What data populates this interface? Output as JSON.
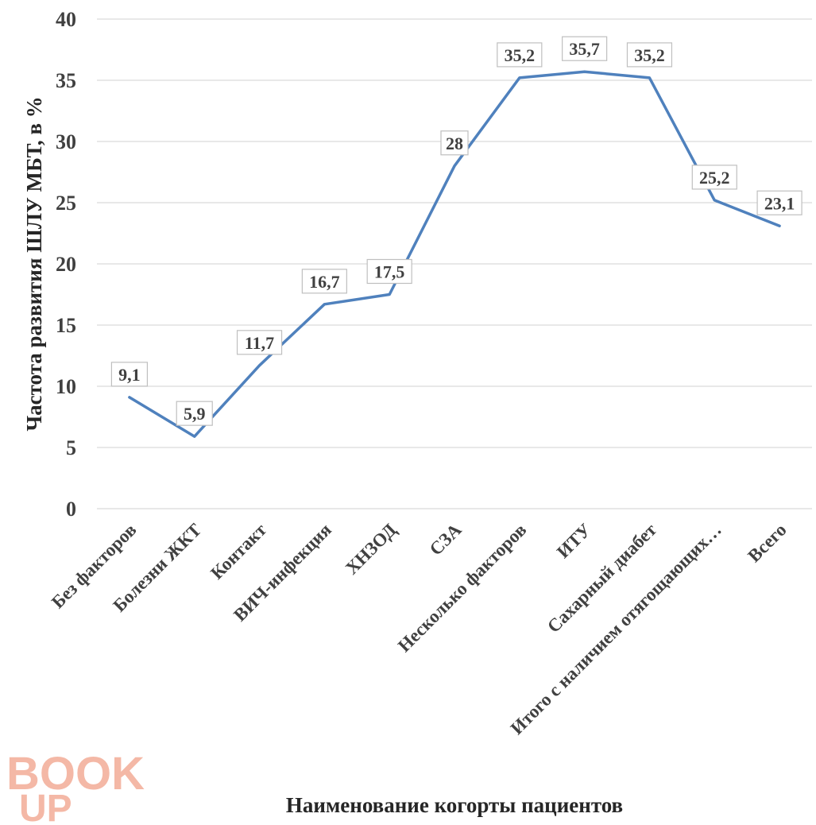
{
  "chart_data": {
    "type": "line",
    "categories": [
      "Без факторов",
      "Болезни ЖКТ",
      "Контакт",
      "ВИЧ-инфекция",
      "ХНЗОД",
      "СЗА",
      "Несколько факторов",
      "ИТУ",
      "Сахарный диабет",
      "Итого с наличием отягощающих…",
      "Всего"
    ],
    "series": [
      {
        "values": [
          9.1,
          5.9,
          11.7,
          16.7,
          17.5,
          28,
          35.2,
          35.7,
          35.2,
          25.2,
          23.1
        ],
        "color": "#4f81bd"
      }
    ],
    "data_labels": [
      "9,1",
      "5,9",
      "11,7",
      "16,7",
      "17,5",
      "28",
      "35,2",
      "35,7",
      "35,2",
      "25,2",
      "23,1"
    ],
    "yticks": [
      0,
      5,
      10,
      15,
      20,
      25,
      30,
      35,
      40
    ],
    "ylim": [
      0,
      40
    ],
    "xlabel": "Наименование когорты пациентов",
    "ylabel": "Частота развития ШЛУ МБТ, в %",
    "grid": true
  },
  "watermark": {
    "line1": "BOOK",
    "line2": "UP",
    "color": "#f4b8a6"
  }
}
